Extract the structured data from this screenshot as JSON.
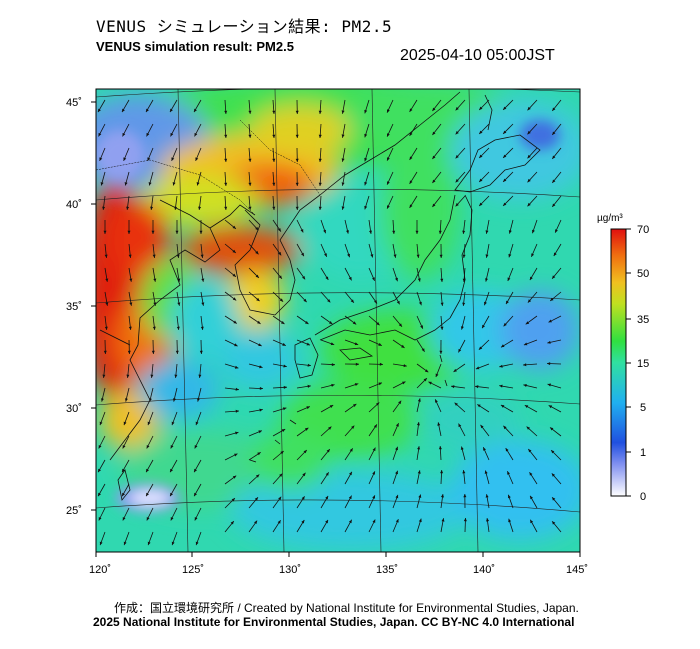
{
  "header": {
    "title_ja": "VENUS シミュレーション結果: PM2.5",
    "title_en": "VENUS simulation result: PM2.5",
    "timestamp": "2025-04-10 05:00JST"
  },
  "axes": {
    "lon_ticks": [
      "120˚",
      "125˚",
      "130˚",
      "135˚",
      "140˚",
      "145˚"
    ],
    "lat_ticks": [
      "45˚",
      "40˚",
      "35˚",
      "30˚",
      "25˚"
    ]
  },
  "colorbar": {
    "unit": "µg/m³",
    "tick_labels": [
      "70",
      "50",
      "35",
      "15",
      "5",
      "1",
      "0"
    ],
    "stops": [
      "#ffffff",
      "#3050e0",
      "#20b0f0",
      "#30e040",
      "#f0e020",
      "#f07010",
      "#e01010"
    ]
  },
  "footer": {
    "credit_line1": "作成：国立環境研究所 / Created by National Institute for Environmental Studies, Japan.",
    "credit_line2": "2025 National Institute for Environmental Studies, Japan. CC BY-NC 4.0 International"
  }
}
